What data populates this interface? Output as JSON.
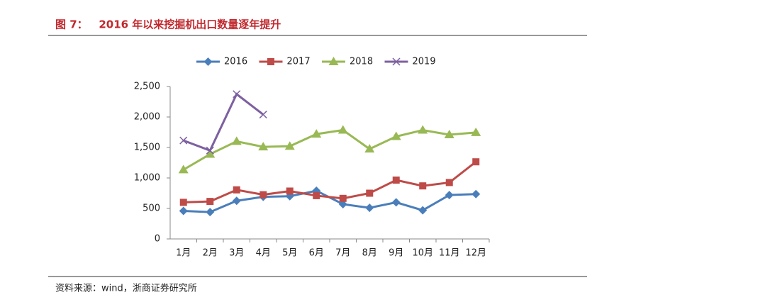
{
  "chart_data": {
    "type": "line",
    "title": "图 7：   2016 年以来挖掘机出口数量逐年提升",
    "source": "资料来源：wind，浙商证券研究所",
    "categories": [
      "1月",
      "2月",
      "3月",
      "4月",
      "5月",
      "6月",
      "7月",
      "8月",
      "9月",
      "10月",
      "11月",
      "12月"
    ],
    "series": [
      {
        "name": "2016",
        "color": "#4a7ebb",
        "marker": "diamond",
        "values": [
          460,
          440,
          625,
          690,
          700,
          790,
          570,
          510,
          600,
          470,
          720,
          735
        ]
      },
      {
        "name": "2017",
        "color": "#be4b48",
        "marker": "square",
        "values": [
          600,
          615,
          805,
          725,
          785,
          710,
          665,
          750,
          965,
          870,
          925,
          1265
        ]
      },
      {
        "name": "2018",
        "color": "#98b954",
        "marker": "triangle",
        "values": [
          1135,
          1390,
          1600,
          1510,
          1520,
          1720,
          1785,
          1475,
          1680,
          1785,
          1710,
          1745
        ]
      },
      {
        "name": "2019",
        "color": "#7d60a0",
        "marker": "x",
        "values": [
          1615,
          1450,
          2375,
          2040,
          null,
          null,
          null,
          null,
          null,
          null,
          null,
          null
        ]
      }
    ],
    "ylim": [
      0,
      2500
    ],
    "yticks": [
      0,
      500,
      {
        "value": 1000,
        "label": "1,000"
      },
      {
        "value": 1500,
        "label": "1,500"
      },
      {
        "value": 2000,
        "label": "2,000"
      },
      {
        "value": 2500,
        "label": "2,500"
      }
    ],
    "grid": false,
    "legend": "top"
  }
}
